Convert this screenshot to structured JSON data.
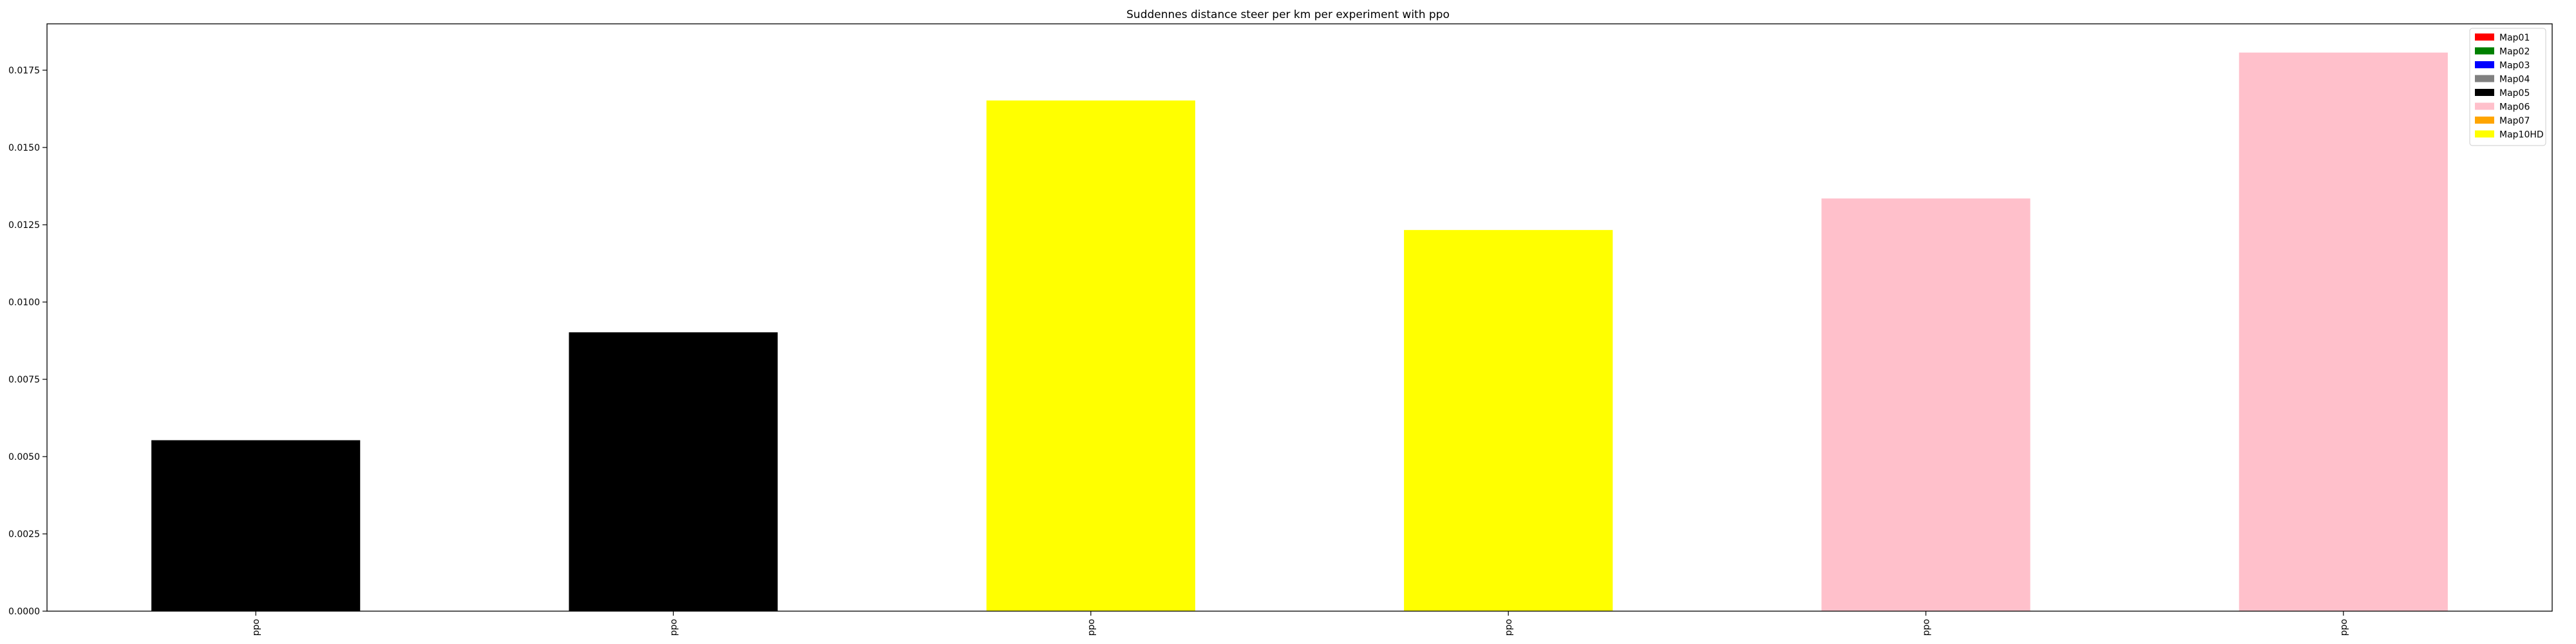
{
  "chart_data": {
    "type": "bar",
    "title": "Suddennes distance steer per km per experiment with ppo",
    "xlabel": "",
    "ylabel": "",
    "categories": [
      "ppo",
      "ppo",
      "ppo",
      "ppo",
      "ppo",
      "ppo"
    ],
    "values": [
      0.00553,
      0.00902,
      0.01652,
      0.01233,
      0.01335,
      0.01807
    ],
    "bar_colors": [
      "#000000",
      "#000000",
      "#ffff00",
      "#ffff00",
      "#ffc0cb",
      "#ffc0cb"
    ],
    "ylim": [
      0,
      0.019
    ],
    "yticks": [
      0.0,
      0.0025,
      0.005,
      0.0075,
      0.01,
      0.0125,
      0.015,
      0.0175
    ],
    "ytick_labels": [
      "0.0000",
      "0.0025",
      "0.0050",
      "0.0075",
      "0.0100",
      "0.0125",
      "0.0150",
      "0.0175"
    ],
    "grid": false,
    "legend_position": "top-right",
    "legend": [
      {
        "label": "Map01",
        "color": "#ff0000"
      },
      {
        "label": "Map02",
        "color": "#008000"
      },
      {
        "label": "Map03",
        "color": "#0000ff"
      },
      {
        "label": "Map04",
        "color": "#808080"
      },
      {
        "label": "Map05",
        "color": "#000000"
      },
      {
        "label": "Map06",
        "color": "#ffc0cb"
      },
      {
        "label": "Map07",
        "color": "#ffa500"
      },
      {
        "label": "Map10HD",
        "color": "#ffff00"
      }
    ]
  }
}
